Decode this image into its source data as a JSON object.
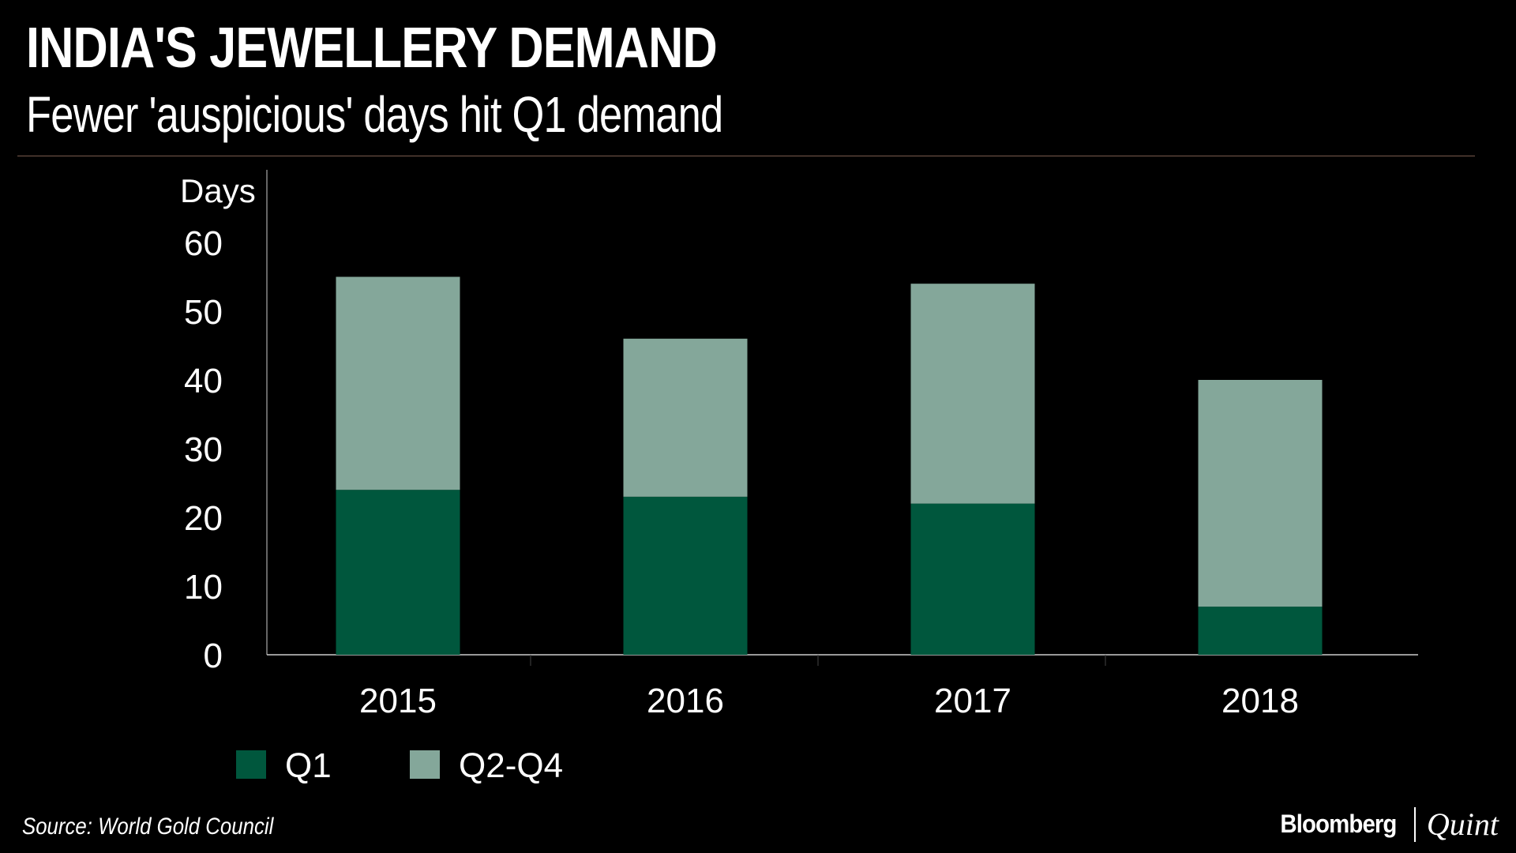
{
  "header": {
    "title": "INDIA'S JEWELLERY DEMAND",
    "subtitle": "Fewer 'auspicious' days hit Q1 demand"
  },
  "footer": {
    "source": "Source: World Gold Council",
    "brand_primary": "Bloomberg",
    "brand_secondary": "Quint"
  },
  "colors": {
    "background": "#000000",
    "q1": "#00573d",
    "q2_q4": "#84a79a",
    "axis": "#cccccc",
    "text": "#ffffff"
  },
  "chart_data": {
    "type": "bar",
    "stacked": true,
    "title": "INDIA'S JEWELLERY DEMAND",
    "subtitle": "Fewer 'auspicious' days hit Q1 demand",
    "xlabel": "",
    "ylabel": "Days",
    "categories": [
      "2015",
      "2016",
      "2017",
      "2018"
    ],
    "series": [
      {
        "name": "Q1",
        "color": "#00573d",
        "values": [
          24,
          23,
          22,
          7
        ]
      },
      {
        "name": "Q2-Q4",
        "color": "#84a79a",
        "values": [
          31,
          23,
          32,
          33
        ]
      }
    ],
    "ylim": [
      0,
      60
    ],
    "yticks": [
      0,
      10,
      20,
      30,
      40,
      50,
      60
    ],
    "grid": false,
    "legend_position": "bottom-left"
  }
}
